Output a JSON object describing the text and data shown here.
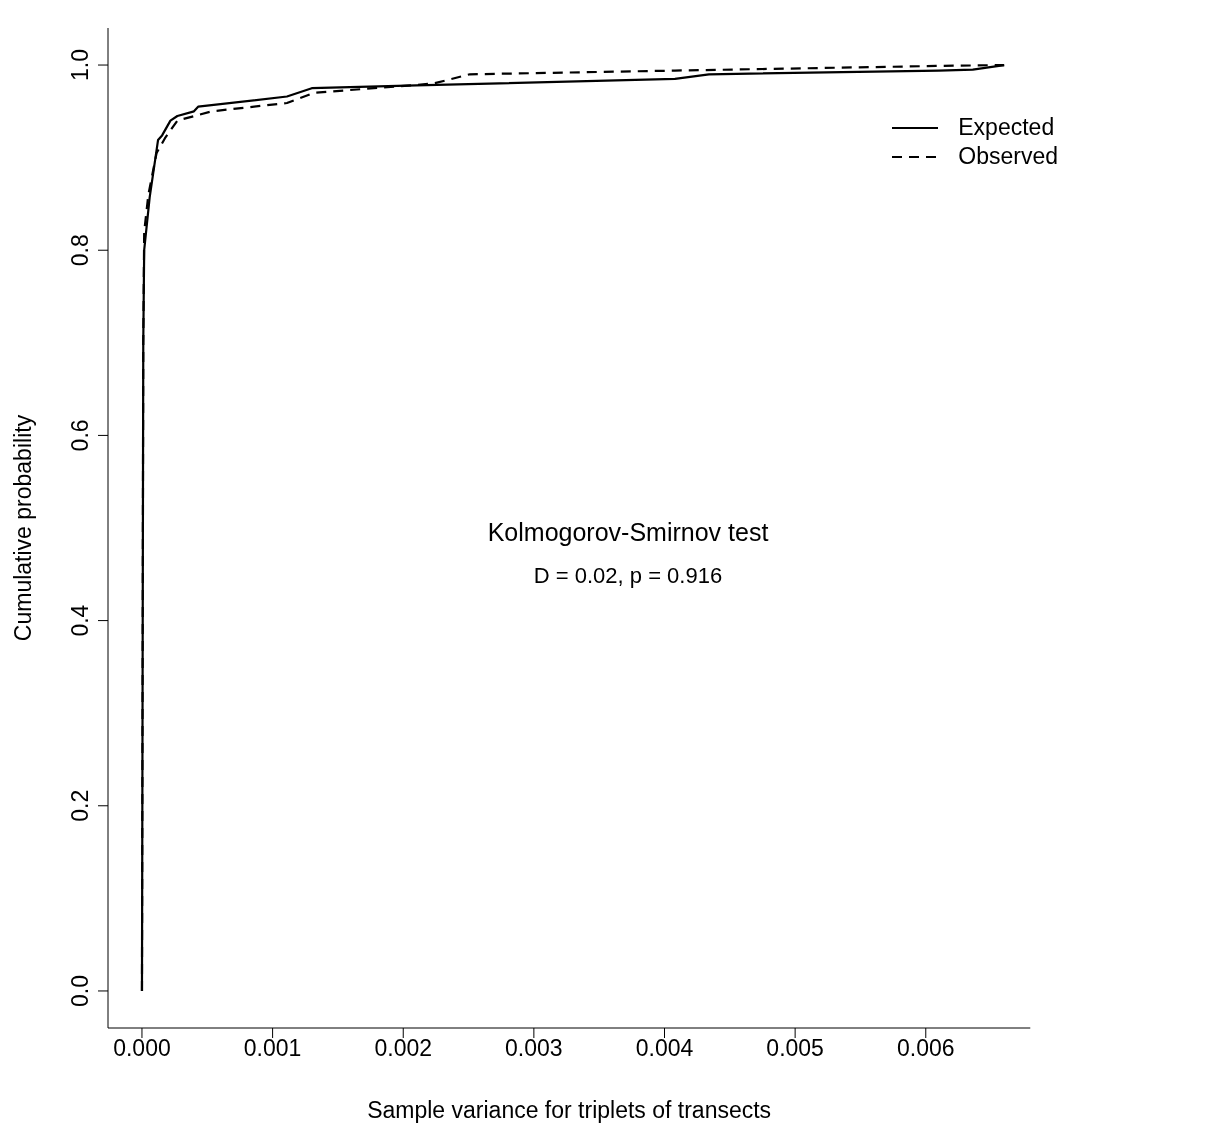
{
  "chart_data": {
    "type": "line",
    "xlabel": "Sample variance for triplets of transects",
    "ylabel": "Cumulative probability",
    "annotations": [
      "Kolmogorov-Smirnov test",
      "D = 0.02, p = 0.916"
    ],
    "xlim": [
      -0.00026,
      0.0068
    ],
    "ylim": [
      -0.04,
      1.04
    ],
    "xticks": [
      {
        "value": 0,
        "label": "0.000"
      },
      0.001,
      0.002,
      0.003,
      0.004,
      0.005,
      0.006
    ],
    "yticks": [
      {
        "value": 0,
        "label": "0.0"
      },
      0.2,
      0.4,
      0.6,
      0.8,
      {
        "value": 1,
        "label": "1.0"
      }
    ],
    "grid": false,
    "legend": "top right",
    "marker": "none",
    "series": [
      {
        "name": "Expected",
        "color": "#000000",
        "line_style": "solid",
        "x": [
          0,
          1e-05,
          1.7e-05,
          5.9e-05,
          0.000123,
          0.000154,
          0.000218,
          0.000271,
          0.000398,
          0.00043,
          0.00111,
          0.0013,
          0.0021,
          0.00408,
          0.00434,
          0.0061,
          0.00636,
          0.0066
        ],
        "values": [
          0,
          0.7,
          0.8,
          0.857,
          0.919,
          0.924,
          0.94,
          0.945,
          0.95,
          0.955,
          0.966,
          0.975,
          0.978,
          0.985,
          0.99,
          0.994,
          0.995,
          1.0
        ]
      },
      {
        "name": "Observed",
        "color": "#000000",
        "line_style": "dashed",
        "x": [
          0,
          1e-05,
          1.7e-05,
          4.9e-05,
          0.000112,
          0.000176,
          0.000271,
          0.000535,
          0.00111,
          0.00132,
          0.00223,
          0.00251,
          0.00408,
          0.00608,
          0.0066
        ],
        "values": [
          0,
          0.7,
          0.82,
          0.86,
          0.905,
          0.921,
          0.94,
          0.95,
          0.959,
          0.97,
          0.98,
          0.99,
          0.994,
          0.999,
          1.0
        ]
      }
    ]
  }
}
